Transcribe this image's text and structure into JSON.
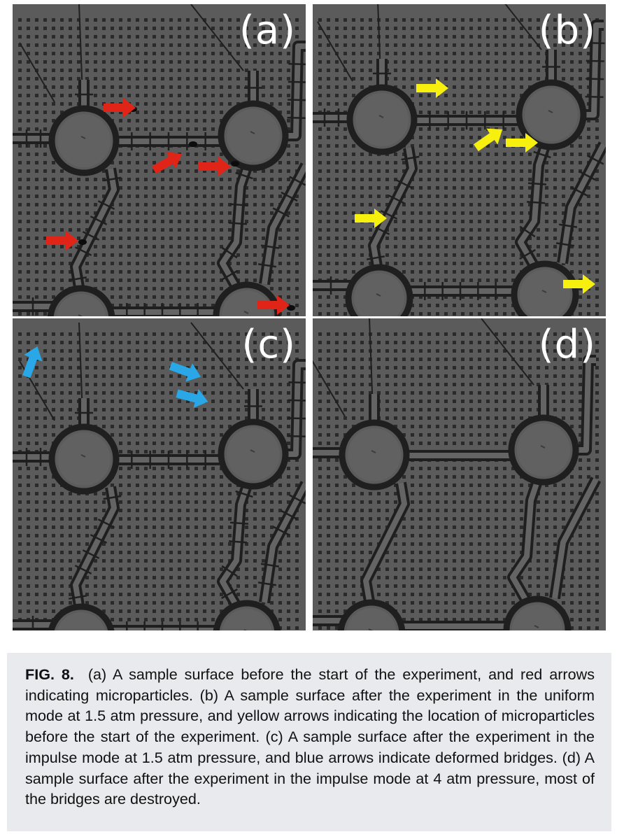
{
  "panels": [
    {
      "id": "a",
      "label": "(a)",
      "arrow_color": "#e02418"
    },
    {
      "id": "b",
      "label": "(b)",
      "arrow_color": "#f7f00e"
    },
    {
      "id": "c",
      "label": "(c)",
      "arrow_color": "#2aa7e6"
    },
    {
      "id": "d",
      "label": "(d)",
      "arrow_color": ""
    }
  ],
  "caption": {
    "figure_label": "FIG. 8.",
    "text": "(a) A sample surface before the start of the experiment, and red arrows indicating microparticles. (b) A sample surface after the experiment in the uniform mode at 1.5 atm pressure, and yellow arrows indicating the location of microparticles before the start of the experiment. (c) A sample surface after the experiment in the impulse mode at 1.5 atm pressure, and blue arrows indicate deformed bridges. (d) A sample surface after the experiment in the impulse mode at 4 atm pressure, most of the bridges are destroyed."
  },
  "colors": {
    "substrate": "#5b5b5b",
    "structure": "#1f1f1f",
    "caption_bg": "#e9eaee"
  }
}
